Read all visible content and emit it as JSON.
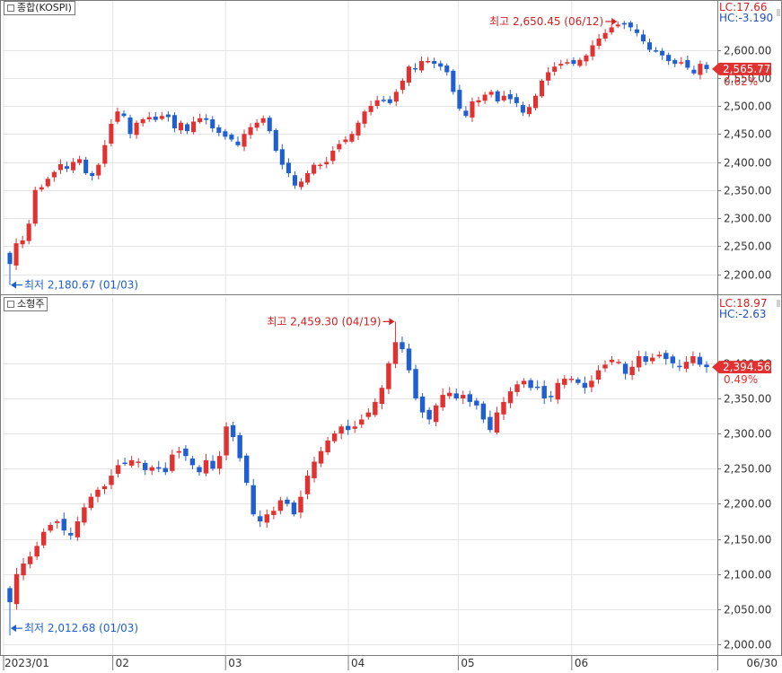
{
  "colors": {
    "up": "#e23131",
    "down": "#1f5fd1",
    "grid": "#e4e4e4",
    "axis": "#7a7a7a",
    "text": "#333333",
    "lc": "#d42020",
    "hc": "#2050c8"
  },
  "x_axis": {
    "labels": [
      "2023/01",
      "02",
      "03",
      "04",
      "05",
      "06"
    ],
    "end_label": "06/30"
  },
  "panels": [
    {
      "title": "종합(KOSPI)",
      "lc": "LC:17.66",
      "hc": "HC:-3.190",
      "last": "2,565.77",
      "change": "0.62%",
      "high_note": "최고 2,650.45 (06/12)",
      "low_note": "최저 2,180.67 (01/03)"
    },
    {
      "title": "소형주",
      "lc": "LC:18.97",
      "hc": "HC:-2.63",
      "last": "2,394.56",
      "change": "0.49%",
      "high_note": "최고 2,459.30 (04/19)",
      "low_note": "최저 2,012.68 (01/03)"
    }
  ],
  "chart_data": [
    {
      "type": "candlestick",
      "title": "종합(KOSPI)",
      "x_range": [
        "2023/01",
        "06/30"
      ],
      "ylim": [
        2180,
        2660
      ],
      "yticks": [
        2200,
        2250,
        2300,
        2350,
        2400,
        2450,
        2500,
        2550,
        2600
      ],
      "ytick_labels": [
        "2,200.00",
        "2,250.00",
        "2,300.00",
        "2,350.00",
        "2,400.00",
        "2,450.00",
        "2,500.00",
        "2,550.00",
        "2,600.00"
      ],
      "closes": [
        2218,
        2255,
        2260,
        2290,
        2350,
        2355,
        2370,
        2382,
        2396,
        2388,
        2400,
        2405,
        2380,
        2375,
        2395,
        2430,
        2468,
        2490,
        2482,
        2450,
        2470,
        2476,
        2480,
        2475,
        2482,
        2480,
        2460,
        2470,
        2455,
        2472,
        2478,
        2475,
        2460,
        2452,
        2445,
        2440,
        2430,
        2450,
        2462,
        2470,
        2478,
        2455,
        2420,
        2395,
        2380,
        2358,
        2365,
        2380,
        2395,
        2395,
        2400,
        2420,
        2432,
        2440,
        2450,
        2470,
        2490,
        2500,
        2510,
        2510,
        2505,
        2525,
        2545,
        2570,
        2565,
        2580,
        2580,
        2575,
        2570,
        2560,
        2525,
        2495,
        2482,
        2508,
        2510,
        2520,
        2525,
        2508,
        2518,
        2512,
        2505,
        2488,
        2498,
        2518,
        2545,
        2560,
        2570,
        2575,
        2578,
        2575,
        2582,
        2590,
        2608,
        2620,
        2630,
        2640,
        2645,
        2645,
        2640,
        2630,
        2615,
        2600,
        2598,
        2590,
        2580,
        2575,
        2578,
        2568,
        2558,
        2575,
        2565.77
      ],
      "high": {
        "value": 2650.45,
        "date": "06/12"
      },
      "low": {
        "value": 2180.67,
        "date": "01/03"
      },
      "last": 2565.77,
      "change_pct": 0.62
    },
    {
      "type": "candlestick",
      "title": "소형주",
      "x_range": [
        "2023/01",
        "06/30"
      ],
      "ylim": [
        1995,
        2470
      ],
      "yticks": [
        2000,
        2050,
        2100,
        2150,
        2200,
        2250,
        2300,
        2350,
        2400
      ],
      "ytick_labels": [
        "2,000.00",
        "2,050.00",
        "2,100.00",
        "2,150.00",
        "2,200.00",
        "2,250.00",
        "2,300.00",
        "2,350.00",
        "2,400.00"
      ],
      "closes": [
        2060,
        2100,
        2115,
        2125,
        2140,
        2160,
        2170,
        2175,
        2162,
        2155,
        2175,
        2195,
        2210,
        2220,
        2225,
        2240,
        2255,
        2258,
        2262,
        2260,
        2248,
        2252,
        2250,
        2245,
        2270,
        2275,
        2268,
        2255,
        2245,
        2262,
        2250,
        2268,
        2310,
        2295,
        2265,
        2230,
        2185,
        2175,
        2185,
        2190,
        2205,
        2200,
        2185,
        2210,
        2240,
        2260,
        2275,
        2290,
        2300,
        2310,
        2305,
        2310,
        2320,
        2330,
        2345,
        2365,
        2400,
        2430,
        2420,
        2390,
        2350,
        2330,
        2320,
        2340,
        2355,
        2358,
        2350,
        2355,
        2345,
        2340,
        2320,
        2305,
        2330,
        2345,
        2360,
        2370,
        2375,
        2365,
        2365,
        2350,
        2352,
        2372,
        2378,
        2378,
        2372,
        2365,
        2375,
        2390,
        2398,
        2405,
        2402,
        2385,
        2395,
        2410,
        2402,
        2408,
        2412,
        2406,
        2400,
        2395,
        2402,
        2410,
        2398,
        2394.56
      ],
      "high": {
        "value": 2459.3,
        "date": "04/19"
      },
      "low": {
        "value": 2012.68,
        "date": "01/03"
      },
      "last": 2394.56,
      "change_pct": 0.49
    }
  ]
}
